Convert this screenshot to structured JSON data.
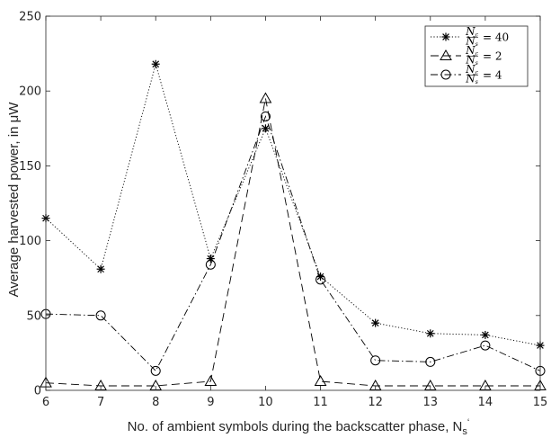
{
  "chart_data": {
    "type": "line",
    "xlabel": "No. of ambient symbols  during the backscatter phase, N",
    "xlabel_sub": "s",
    "xlabel_suffix": "‘",
    "ylabel": "Average harvested power, in μW",
    "xlim": [
      6,
      15
    ],
    "ylim": [
      0,
      250
    ],
    "x_ticks": [
      6,
      7,
      8,
      9,
      10,
      11,
      12,
      13,
      14,
      15
    ],
    "y_ticks": [
      0,
      50,
      100,
      150,
      200,
      250
    ],
    "grid": false,
    "legend_position": "top-right",
    "x": [
      6,
      7,
      8,
      9,
      10,
      11,
      12,
      13,
      14,
      15
    ],
    "series": [
      {
        "name": "Nc/Ns = 40",
        "legend_num": "N",
        "legend_num_sub": "c",
        "legend_den": "N",
        "legend_den_sub": "s",
        "legend_value": "= 40",
        "marker": "star",
        "line_style": "dotted",
        "values": [
          115,
          81,
          218,
          88,
          175,
          76,
          45,
          38,
          37,
          30
        ]
      },
      {
        "name": "Nc/Ns = 2",
        "legend_num": "N",
        "legend_num_sub": "c",
        "legend_den": "N",
        "legend_den_sub": "s",
        "legend_value": "= 2",
        "marker": "triangle",
        "line_style": "dashed",
        "values": [
          5,
          3,
          3,
          6,
          195,
          6,
          3,
          3,
          3,
          3
        ]
      },
      {
        "name": "Nc/Ns = 4",
        "legend_num": "N",
        "legend_num_sub": "c",
        "legend_den": "N",
        "legend_den_sub": "s",
        "legend_value": "= 4",
        "marker": "circle",
        "line_style": "dashdot",
        "values": [
          51,
          50,
          13,
          84,
          183,
          74,
          20,
          19,
          30,
          13
        ]
      }
    ],
    "colors": {
      "line": "#000000",
      "axis": "#262626"
    }
  }
}
